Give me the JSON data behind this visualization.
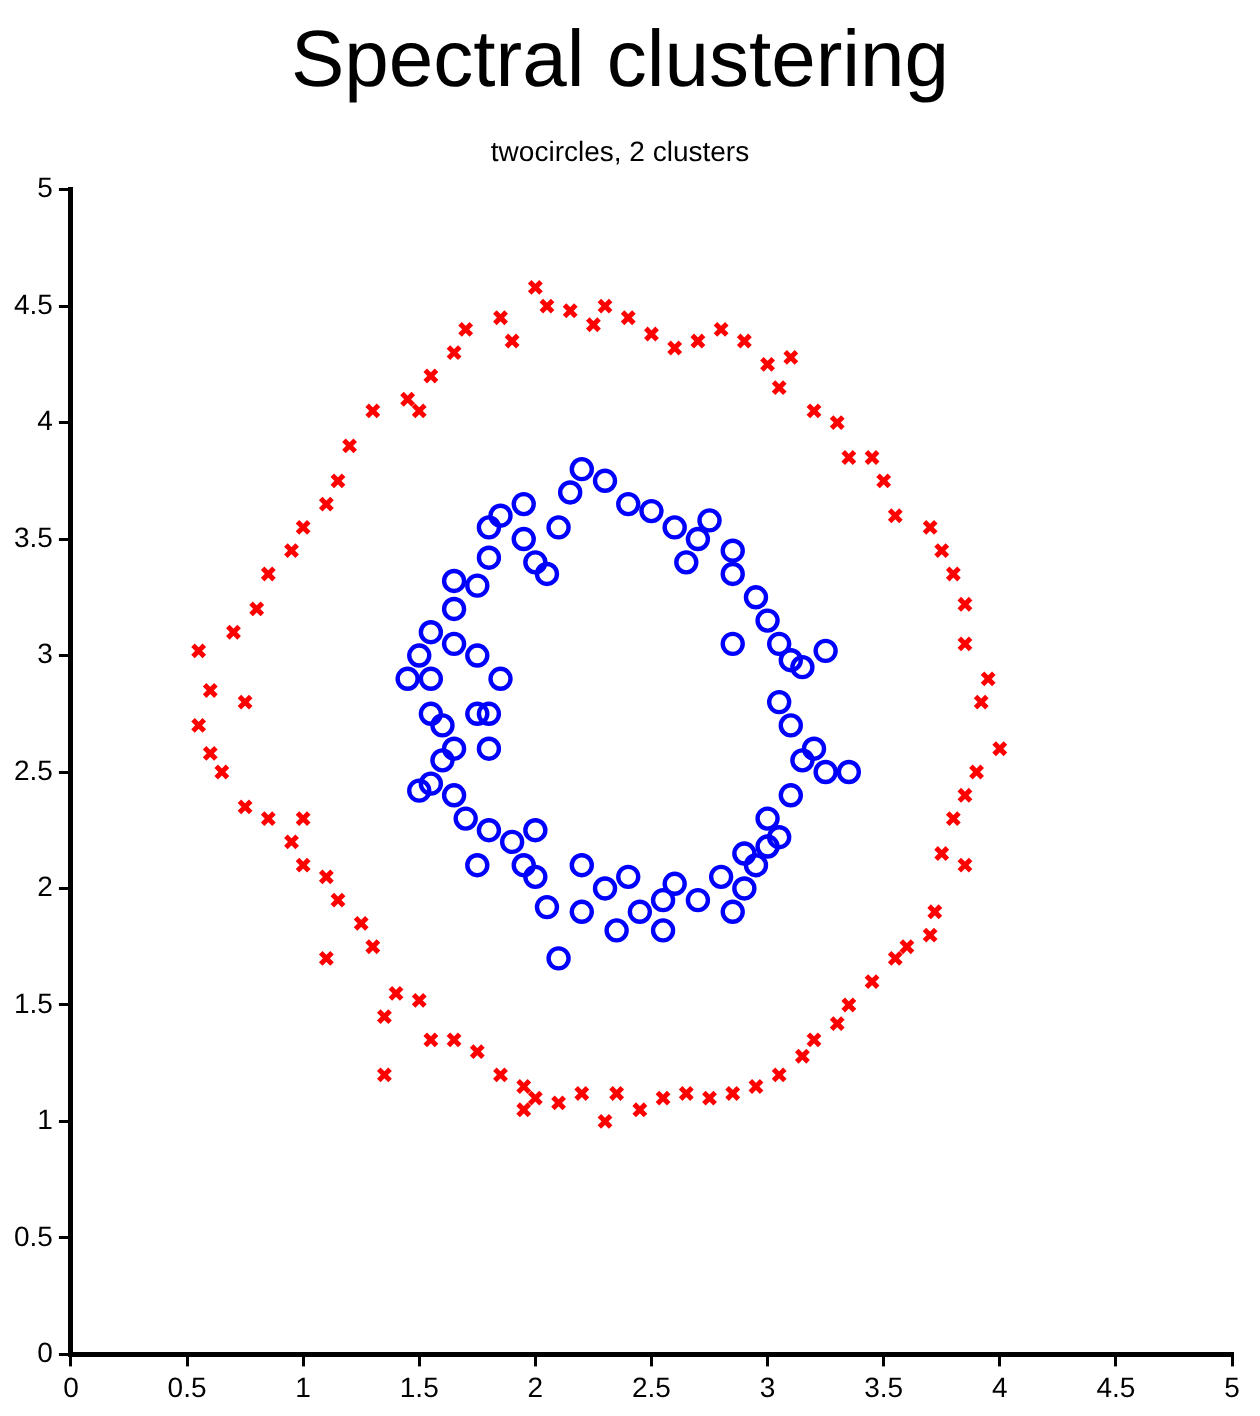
{
  "chart_data": {
    "type": "scatter",
    "title": "Spectral clustering",
    "subtitle": "twocircles, 2 clusters",
    "xlim": [
      0,
      5
    ],
    "ylim": [
      0,
      5
    ],
    "xticks": [
      0,
      0.5,
      1,
      1.5,
      2,
      2.5,
      3,
      3.5,
      4,
      4.5,
      5
    ],
    "yticks": [
      0,
      0.5,
      1,
      1.5,
      2,
      2.5,
      3,
      3.5,
      4,
      4.5,
      5
    ],
    "grid": false,
    "legend": false,
    "series": [
      {
        "color": "#ff0000",
        "marker": "cross",
        "x": [
          2.0,
          2.05,
          2.15,
          2.25,
          2.3,
          2.4,
          2.5,
          2.6,
          2.7,
          2.8,
          2.9,
          3.0,
          3.05,
          3.1,
          3.2,
          3.3,
          3.35,
          3.45,
          3.5,
          3.55,
          3.7,
          3.75,
          3.8,
          3.85,
          3.85,
          3.95,
          3.92,
          4.0,
          3.9,
          3.85,
          3.8,
          3.75,
          3.85,
          3.72,
          3.7,
          3.6,
          3.55,
          3.45,
          3.35,
          3.3,
          3.2,
          3.15,
          3.05,
          2.95,
          2.85,
          2.75,
          2.65,
          2.55,
          2.45,
          2.35,
          2.3,
          2.2,
          2.1,
          2.0,
          1.95,
          1.85,
          1.75,
          1.65,
          1.55,
          1.5,
          1.4,
          1.35,
          1.35,
          1.3,
          1.25,
          1.15,
          1.1,
          1.0,
          0.95,
          0.85,
          0.75,
          0.65,
          0.6,
          0.55,
          0.6,
          0.55,
          0.7,
          0.8,
          0.85,
          0.95,
          1.0,
          1.1,
          1.15,
          1.2,
          1.3,
          1.45,
          1.55,
          1.65,
          1.7,
          1.85,
          1.9,
          1.5,
          0.75,
          1.0,
          1.1,
          1.95
        ],
        "values": [
          4.58,
          4.5,
          4.48,
          4.42,
          4.5,
          4.45,
          4.38,
          4.32,
          4.35,
          4.4,
          4.35,
          4.25,
          4.15,
          4.28,
          4.05,
          4.0,
          3.85,
          3.85,
          3.75,
          3.6,
          3.55,
          3.45,
          3.35,
          3.22,
          3.05,
          2.9,
          2.8,
          2.6,
          2.5,
          2.4,
          2.3,
          2.15,
          2.1,
          1.9,
          1.8,
          1.75,
          1.7,
          1.6,
          1.5,
          1.42,
          1.35,
          1.28,
          1.2,
          1.15,
          1.12,
          1.1,
          1.12,
          1.1,
          1.05,
          1.12,
          1.0,
          1.12,
          1.08,
          1.1,
          1.15,
          1.2,
          1.3,
          1.35,
          1.35,
          1.52,
          1.55,
          1.45,
          1.2,
          1.75,
          1.85,
          1.95,
          2.05,
          2.1,
          2.2,
          2.3,
          2.35,
          2.5,
          2.58,
          2.7,
          2.85,
          3.02,
          3.1,
          3.2,
          3.35,
          3.45,
          3.55,
          3.65,
          3.75,
          3.9,
          4.05,
          4.1,
          4.2,
          4.3,
          4.4,
          4.45,
          4.35,
          4.05,
          2.8,
          2.3,
          1.7,
          1.05
        ]
      },
      {
        "color": "#0000ff",
        "marker": "circle",
        "x": [
          2.2,
          2.3,
          2.4,
          2.5,
          2.6,
          2.7,
          2.75,
          2.85,
          2.85,
          2.95,
          3.0,
          3.05,
          3.1,
          3.15,
          3.25,
          3.05,
          3.1,
          3.15,
          3.2,
          3.25,
          3.35,
          3.1,
          3.05,
          3.0,
          2.95,
          2.9,
          2.85,
          2.8,
          2.7,
          2.6,
          2.55,
          2.55,
          2.45,
          2.35,
          2.4,
          2.3,
          2.2,
          2.2,
          2.1,
          2.05,
          2.0,
          1.95,
          1.9,
          1.8,
          1.75,
          1.7,
          1.65,
          1.55,
          1.5,
          1.6,
          1.65,
          1.6,
          1.55,
          1.55,
          1.45,
          1.5,
          1.55,
          1.65,
          1.75,
          1.65,
          1.65,
          1.75,
          1.8,
          1.8,
          1.85,
          1.95,
          2.0,
          2.05,
          2.1,
          2.15,
          1.8,
          1.8,
          1.75,
          2.0,
          1.95,
          2.65,
          2.85,
          2.9,
          3.0,
          1.85
        ],
        "values": [
          3.8,
          3.75,
          3.65,
          3.62,
          3.55,
          3.5,
          3.58,
          3.45,
          3.35,
          3.25,
          3.15,
          3.05,
          2.98,
          2.95,
          3.02,
          2.8,
          2.7,
          2.55,
          2.6,
          2.5,
          2.5,
          2.4,
          2.22,
          2.18,
          2.1,
          2.0,
          1.9,
          2.05,
          1.95,
          2.02,
          1.82,
          1.95,
          1.9,
          1.82,
          2.05,
          2.0,
          2.1,
          1.9,
          1.7,
          1.92,
          2.05,
          2.1,
          2.2,
          2.25,
          2.1,
          2.3,
          2.4,
          2.45,
          2.42,
          2.55,
          2.6,
          2.7,
          2.75,
          2.9,
          2.9,
          3.0,
          3.1,
          3.05,
          3.0,
          3.2,
          3.32,
          3.3,
          3.42,
          3.55,
          3.6,
          3.5,
          3.4,
          3.35,
          3.55,
          3.7,
          2.75,
          2.6,
          2.75,
          2.25,
          3.65,
          3.4,
          3.05,
          2.15,
          2.3,
          2.9
        ]
      }
    ]
  }
}
